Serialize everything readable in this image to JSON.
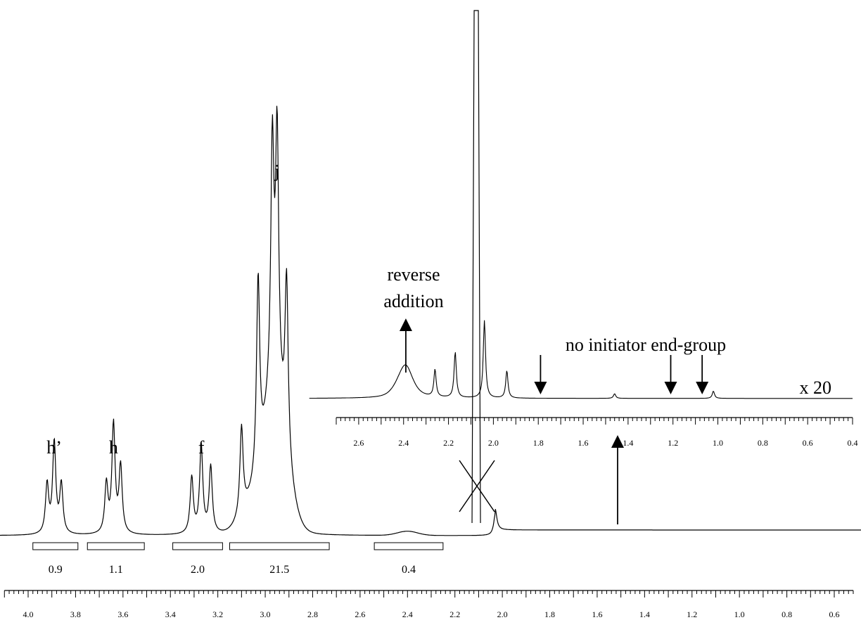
{
  "chart_data": [
    {
      "type": "line",
      "panel": "main",
      "xlim": [
        4.0,
        0.6
      ],
      "x_reversed": true,
      "x_ticks": [
        "4.0",
        "3.8",
        "3.6",
        "3.4",
        "3.2",
        "3.0",
        "2.8",
        "2.6",
        "2.4",
        "2.2",
        "2.0",
        "1.8",
        "1.6",
        "1.4",
        "1.2",
        "1.0",
        "0.8",
        "0.6"
      ],
      "peak_labels": [
        {
          "label": "h’",
          "x": 3.89
        },
        {
          "label": "h",
          "x": 3.64
        },
        {
          "label": "f",
          "x": 3.27
        },
        {
          "label": "j",
          "x": 2.95
        }
      ],
      "integrals": [
        {
          "value": "0.9",
          "from": 3.98,
          "to": 3.79
        },
        {
          "value": "1.1",
          "from": 3.75,
          "to": 3.51
        },
        {
          "value": "2.0",
          "from": 3.39,
          "to": 3.18
        },
        {
          "value": "21.5",
          "from": 3.15,
          "to": 2.73
        },
        {
          "value": "0.4",
          "from": 2.54,
          "to": 2.25
        }
      ],
      "peaks": [
        {
          "x": 3.92,
          "y": 0.14
        },
        {
          "x": 3.89,
          "y": 0.26
        },
        {
          "x": 3.86,
          "y": 0.14
        },
        {
          "x": 3.67,
          "y": 0.14
        },
        {
          "x": 3.64,
          "y": 0.31
        },
        {
          "x": 3.61,
          "y": 0.19
        },
        {
          "x": 3.31,
          "y": 0.16
        },
        {
          "x": 3.27,
          "y": 0.25
        },
        {
          "x": 3.23,
          "y": 0.19
        },
        {
          "x": 3.1,
          "y": 0.25
        },
        {
          "x": 3.03,
          "y": 0.55
        },
        {
          "x": 2.97,
          "y": 0.7
        },
        {
          "x": 2.95,
          "y": 0.73
        },
        {
          "x": 2.91,
          "y": 0.49
        },
        {
          "x": 2.11,
          "y": 1.0
        },
        {
          "x": 2.03,
          "y": 0.06
        }
      ],
      "annotation_cross_x": 2.11
    },
    {
      "type": "line",
      "panel": "inset",
      "xlim": [
        2.7,
        0.4
      ],
      "x_reversed": true,
      "x_ticks": [
        "2.6",
        "2.4",
        "2.2",
        "2.0",
        "1.8",
        "1.6",
        "1.4",
        "1.2",
        "1.0",
        "0.8",
        "0.6",
        "0.4"
      ],
      "scale_label": "x 20",
      "annotations": [
        {
          "text": [
            "reverse",
            "addition"
          ],
          "x": 2.39,
          "direction": "up"
        },
        {
          "text": [
            "no initiator end-group"
          ],
          "arrows_x": [
            1.79,
            1.21,
            1.07
          ],
          "direction": "down"
        }
      ],
      "peaks": [
        {
          "x": 2.39,
          "y": 0.25
        },
        {
          "x": 2.26,
          "y": 0.3
        },
        {
          "x": 2.17,
          "y": 0.5
        },
        {
          "x": 2.11,
          "y": 1.0
        },
        {
          "x": 2.04,
          "y": 0.85
        },
        {
          "x": 1.94,
          "y": 0.3
        },
        {
          "x": 1.46,
          "y": 0.05
        },
        {
          "x": 1.02,
          "y": 0.08
        }
      ]
    }
  ]
}
